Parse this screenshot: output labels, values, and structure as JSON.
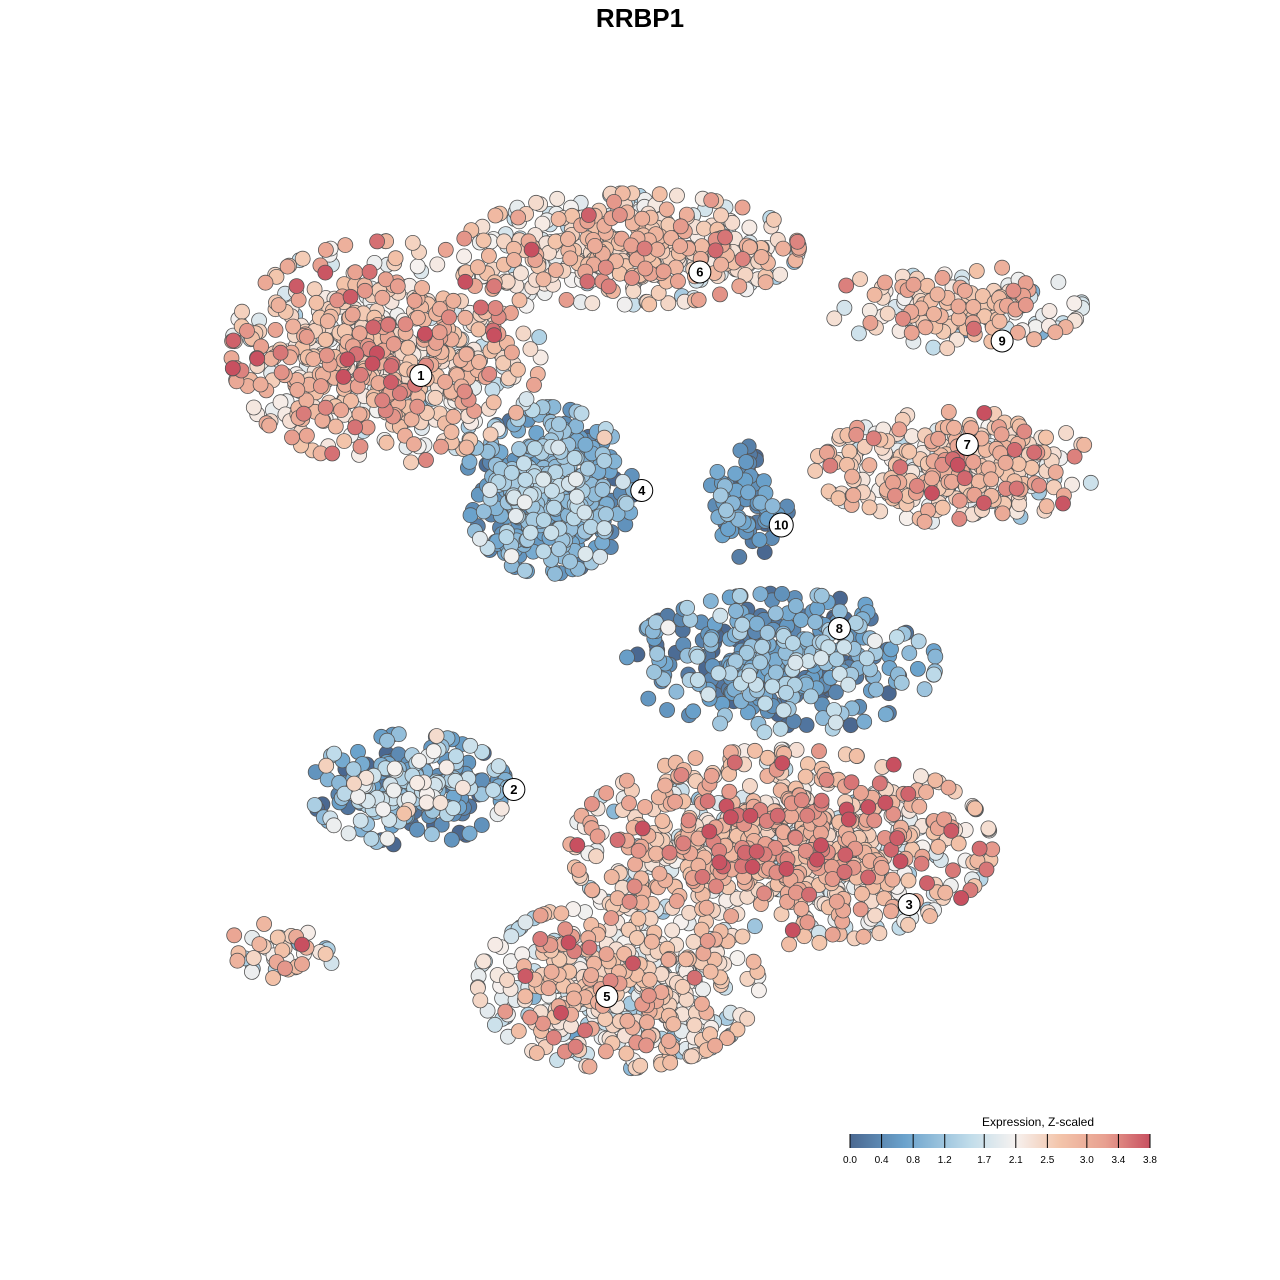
{
  "chart_data": {
    "type": "scatter",
    "title": "RRBP1",
    "xlabel": "",
    "ylabel": "",
    "grid": false,
    "point_style": "filled circles with dark grey outline, colored by expression",
    "clusters": [
      {
        "label": "1",
        "cx": -12.0,
        "cy": 12.5,
        "sx": 5.5,
        "sy": 4.0,
        "n": 650,
        "mean_expr": 2.55,
        "sd_expr": 0.55
      },
      {
        "label": "2",
        "cx": -11.0,
        "cy": -6.5,
        "sx": 3.5,
        "sy": 2.0,
        "n": 260,
        "mean_expr": 1.0,
        "sd_expr": 0.65
      },
      {
        "label": "3",
        "cx": 5.0,
        "cy": -9.0,
        "sx": 7.5,
        "sy": 3.5,
        "n": 850,
        "mean_expr": 2.55,
        "sd_expr": 0.6
      },
      {
        "label": "4",
        "cx": -5.0,
        "cy": 6.5,
        "sx": 3.0,
        "sy": 3.0,
        "n": 420,
        "mean_expr": 0.85,
        "sd_expr": 0.45
      },
      {
        "label": "5",
        "cx": -2.0,
        "cy": -15.0,
        "sx": 5.0,
        "sy": 3.0,
        "n": 500,
        "mean_expr": 2.3,
        "sd_expr": 0.55
      },
      {
        "label": "6",
        "cx": -1.5,
        "cy": 17.0,
        "sx": 6.0,
        "sy": 2.0,
        "n": 420,
        "mean_expr": 2.4,
        "sd_expr": 0.55
      },
      {
        "label": "7",
        "cx": 12.5,
        "cy": 7.5,
        "sx": 5.0,
        "sy": 2.0,
        "n": 330,
        "mean_expr": 2.5,
        "sd_expr": 0.5
      },
      {
        "label": "8",
        "cx": 5.0,
        "cy": -1.0,
        "sx": 5.5,
        "sy": 2.5,
        "n": 380,
        "mean_expr": 0.65,
        "sd_expr": 0.55
      },
      {
        "label": "9",
        "cx": 12.5,
        "cy": 14.5,
        "sx": 4.5,
        "sy": 1.5,
        "n": 160,
        "mean_expr": 2.3,
        "sd_expr": 0.55
      },
      {
        "label": "10",
        "cx": 3.5,
        "cy": 6.0,
        "sx": 1.5,
        "sy": 2.0,
        "n": 90,
        "mean_expr": 0.4,
        "sd_expr": 0.35
      },
      {
        "label": "",
        "cx": -16.5,
        "cy": -13.5,
        "sx": 2.0,
        "sy": 1.0,
        "n": 40,
        "mean_expr": 2.4,
        "sd_expr": 0.7
      }
    ],
    "label_positions": [
      {
        "label": "1",
        "x": -10.5,
        "y": 11.5
      },
      {
        "label": "2",
        "x": -6.5,
        "y": -6.5
      },
      {
        "label": "3",
        "x": 10.5,
        "y": -11.5
      },
      {
        "label": "4",
        "x": -1.0,
        "y": 6.5
      },
      {
        "label": "5",
        "x": -2.5,
        "y": -15.5
      },
      {
        "label": "6",
        "x": 1.5,
        "y": 16.0
      },
      {
        "label": "7",
        "x": 13.0,
        "y": 8.5
      },
      {
        "label": "8",
        "x": 7.5,
        "y": 0.5
      },
      {
        "label": "9",
        "x": 14.5,
        "y": 13.0
      },
      {
        "label": "10",
        "x": 5.0,
        "y": 5.0
      }
    ],
    "xlim": [
      -20,
      20
    ],
    "ylim": [
      -20,
      20
    ],
    "colorbar": {
      "title": "Expression, Z-scaled",
      "range": [
        0.0,
        3.8
      ],
      "tick_values": [
        0.0,
        0.4,
        0.8,
        1.2,
        1.7,
        2.1,
        2.5,
        3.0,
        3.4,
        3.8
      ],
      "tick_labels": [
        "0.0",
        "0.4",
        "0.8",
        "1.2",
        "1.7",
        "2.1",
        "2.5",
        "3.0",
        "3.4",
        "3.8"
      ],
      "colors": [
        "#4a6891",
        "#6aa2cc",
        "#c0dcea",
        "#f6f2f0",
        "#f3c4aa",
        "#e8a090",
        "#c85060"
      ]
    }
  }
}
